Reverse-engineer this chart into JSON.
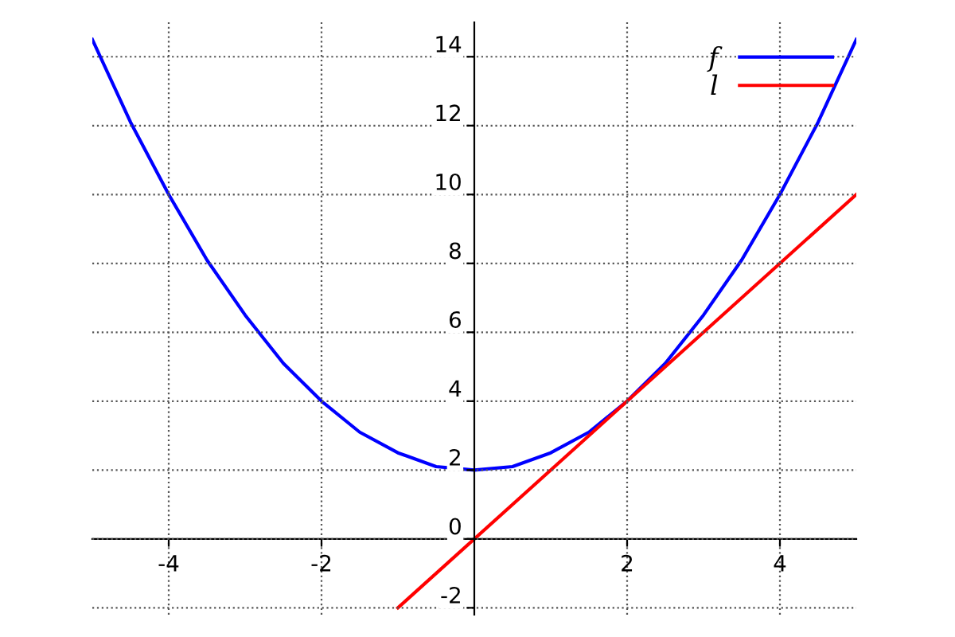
{
  "chart_data": {
    "type": "line",
    "xlim": [
      -5,
      5
    ],
    "ylim": [
      -2.2,
      15
    ],
    "xticks": [
      -4,
      -2,
      2,
      4
    ],
    "yticks": [
      -2,
      0,
      2,
      4,
      6,
      8,
      10,
      12,
      14
    ],
    "grid": true,
    "legend": "top right",
    "line_style": "solid",
    "marker": "none",
    "series": [
      {
        "name": "f",
        "color": "#0000ff",
        "x": [
          -5,
          -4.5,
          -4,
          -3.5,
          -3,
          -2.5,
          -2,
          -1.5,
          -1,
          -0.5,
          0,
          0.5,
          1,
          1.5,
          2,
          2.5,
          3,
          3.5,
          4,
          4.5,
          5
        ],
        "values": [
          14.5,
          12.1,
          10,
          8.1,
          6.5,
          5.1,
          4,
          3.1,
          2.5,
          2.1,
          2,
          2.1,
          2.5,
          3.1,
          4,
          5.1,
          6.5,
          8.1,
          10,
          12.1,
          14.5
        ]
      },
      {
        "name": "l",
        "color": "#ff0000",
        "x": [
          -1,
          5
        ],
        "values": [
          -2,
          10
        ]
      }
    ]
  }
}
